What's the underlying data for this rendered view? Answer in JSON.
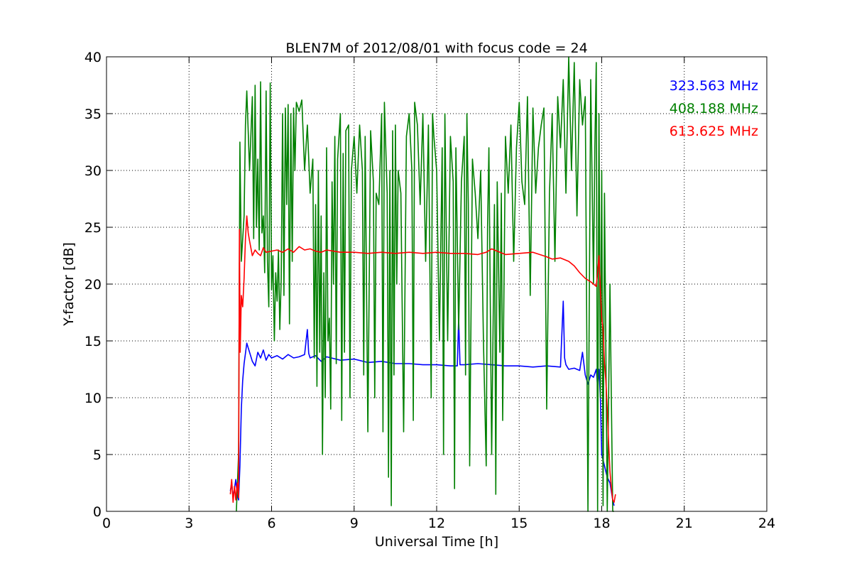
{
  "chart_data": {
    "type": "line",
    "title": "BLEN7M of 2012/08/01 with focus code = 24",
    "xlabel": "Universal Time [h]",
    "ylabel": "Y-factor [dB]",
    "xlim": [
      0,
      24
    ],
    "ylim": [
      0,
      40
    ],
    "xticks": [
      0,
      3,
      6,
      9,
      12,
      15,
      18,
      21,
      24
    ],
    "yticks": [
      0,
      5,
      10,
      15,
      20,
      25,
      30,
      35,
      40
    ],
    "grid": true,
    "legend": "top-right",
    "series": [
      {
        "name": "323.563 MHz",
        "color": "#0000ff",
        "x": [
          4.5,
          4.55,
          4.6,
          4.65,
          4.7,
          4.75,
          4.8,
          4.85,
          4.9,
          4.95,
          5.0,
          5.1,
          5.2,
          5.3,
          5.4,
          5.5,
          5.6,
          5.7,
          5.8,
          5.9,
          6.0,
          6.2,
          6.4,
          6.6,
          6.8,
          7.0,
          7.2,
          7.3,
          7.35,
          7.4,
          7.6,
          7.8,
          8.0,
          8.5,
          9.0,
          9.5,
          10.0,
          10.5,
          11.0,
          11.5,
          12.0,
          12.5,
          12.75,
          12.8,
          12.85,
          13.0,
          13.5,
          14.0,
          14.5,
          15.0,
          15.5,
          16.0,
          16.5,
          16.6,
          16.65,
          16.7,
          16.8,
          17.0,
          17.2,
          17.3,
          17.4,
          17.5,
          17.6,
          17.7,
          17.8,
          17.85,
          17.9,
          17.95,
          18.0,
          18.1,
          18.2,
          18.3,
          18.4,
          18.45
        ],
        "y": [
          1.8,
          2.5,
          1.2,
          2.0,
          2.8,
          1.5,
          1.0,
          4.0,
          9.0,
          11.5,
          13.0,
          14.8,
          14.0,
          13.2,
          12.8,
          14.0,
          13.5,
          14.2,
          13.3,
          13.8,
          13.5,
          13.7,
          13.4,
          13.8,
          13.5,
          13.6,
          13.8,
          16.0,
          13.9,
          13.5,
          13.7,
          13.2,
          13.6,
          13.3,
          13.4,
          13.1,
          13.2,
          13.0,
          13.0,
          12.9,
          12.9,
          12.8,
          12.8,
          17.0,
          12.9,
          12.9,
          13.0,
          12.9,
          12.8,
          12.8,
          12.7,
          12.8,
          12.7,
          18.5,
          13.5,
          12.9,
          12.5,
          12.6,
          12.4,
          14.0,
          12.0,
          11.2,
          12.0,
          11.8,
          12.5,
          11.0,
          12.5,
          10.0,
          5.0,
          4.0,
          3.0,
          2.5,
          1.0,
          0.5
        ]
      },
      {
        "name": "408.188 MHz",
        "color": "#008000",
        "x": [
          4.72,
          4.8,
          4.85,
          4.9,
          5.0,
          5.05,
          5.1,
          5.2,
          5.3,
          5.35,
          5.4,
          5.45,
          5.5,
          5.55,
          5.6,
          5.65,
          5.7,
          5.75,
          5.8,
          5.85,
          5.9,
          5.95,
          6.0,
          6.05,
          6.1,
          6.15,
          6.2,
          6.25,
          6.3,
          6.35,
          6.4,
          6.45,
          6.5,
          6.55,
          6.6,
          6.65,
          6.7,
          6.75,
          6.8,
          6.85,
          6.9,
          7.0,
          7.1,
          7.2,
          7.3,
          7.4,
          7.5,
          7.55,
          7.6,
          7.65,
          7.7,
          7.75,
          7.8,
          7.85,
          7.9,
          7.95,
          8.0,
          8.05,
          8.1,
          8.15,
          8.2,
          8.25,
          8.3,
          8.35,
          8.4,
          8.5,
          8.55,
          8.6,
          8.65,
          8.7,
          8.8,
          8.85,
          8.9,
          9.0,
          9.1,
          9.2,
          9.3,
          9.35,
          9.4,
          9.5,
          9.6,
          9.7,
          9.75,
          9.8,
          9.9,
          10.0,
          10.05,
          10.1,
          10.2,
          10.25,
          10.3,
          10.35,
          10.4,
          10.45,
          10.5,
          10.55,
          10.6,
          10.7,
          10.8,
          10.9,
          11.0,
          11.1,
          11.15,
          11.2,
          11.3,
          11.4,
          11.5,
          11.6,
          11.7,
          11.8,
          11.85,
          11.9,
          12.0,
          12.1,
          12.2,
          12.25,
          12.3,
          12.4,
          12.5,
          12.6,
          12.65,
          12.7,
          12.8,
          12.9,
          13.0,
          13.05,
          13.1,
          13.15,
          13.2,
          13.3,
          13.4,
          13.5,
          13.6,
          13.7,
          13.8,
          13.85,
          13.9,
          14.0,
          14.1,
          14.15,
          14.2,
          14.3,
          14.35,
          14.4,
          14.5,
          14.6,
          14.7,
          14.8,
          14.9,
          15.0,
          15.1,
          15.2,
          15.3,
          15.4,
          15.5,
          15.6,
          15.7,
          15.8,
          15.9,
          16.0,
          16.1,
          16.2,
          16.3,
          16.4,
          16.5,
          16.6,
          16.7,
          16.8,
          16.9,
          17.0,
          17.1,
          17.2,
          17.3,
          17.4,
          17.5,
          17.6,
          17.7,
          17.75,
          17.8,
          17.85,
          17.9,
          17.95,
          18.0,
          18.05,
          18.1,
          18.2,
          18.3,
          18.4,
          18.45
        ],
        "y": [
          0.0,
          5.0,
          32.5,
          22.0,
          26.0,
          34.0,
          37.0,
          30.0,
          36.5,
          24.0,
          37.5,
          25.0,
          31.0,
          23.0,
          37.8,
          24.5,
          26.0,
          21.0,
          37.0,
          22.0,
          18.0,
          37.7,
          19.5,
          22.5,
          15.0,
          21.0,
          18.5,
          23.0,
          16.0,
          20.5,
          35.0,
          19.0,
          35.5,
          27.0,
          35.8,
          16.5,
          35.0,
          22.0,
          35.5,
          30.0,
          36.0,
          35.2,
          36.2,
          30.0,
          34.0,
          28.0,
          31.0,
          13.5,
          27.0,
          11.0,
          30.0,
          14.0,
          26.0,
          5.0,
          21.0,
          10.0,
          32.0,
          15.0,
          17.0,
          9.0,
          29.0,
          20.0,
          33.0,
          13.0,
          31.0,
          35.0,
          8.0,
          31.5,
          14.0,
          33.5,
          34.0,
          10.0,
          30.0,
          33.0,
          28.0,
          34.0,
          30.0,
          12.0,
          33.0,
          7.0,
          33.5,
          29.0,
          10.0,
          28.0,
          27.0,
          35.0,
          7.0,
          36.0,
          28.0,
          3.0,
          30.0,
          0.5,
          33.5,
          12.0,
          34.0,
          20.0,
          30.0,
          28.0,
          7.0,
          33.0,
          35.0,
          30.0,
          8.0,
          36.0,
          34.0,
          27.0,
          35.0,
          22.0,
          34.0,
          10.0,
          35.0,
          33.0,
          30.0,
          15.0,
          32.0,
          5.0,
          35.0,
          15.0,
          33.0,
          29.0,
          2.0,
          32.0,
          16.0,
          29.0,
          33.0,
          12.0,
          35.0,
          27.0,
          4.0,
          31.0,
          28.0,
          24.0,
          30.0,
          15.0,
          4.0,
          25.0,
          32.0,
          5.0,
          27.0,
          1.5,
          29.0,
          14.0,
          28.0,
          8.0,
          33.0,
          28.0,
          34.0,
          22.0,
          32.0,
          36.0,
          29.0,
          27.0,
          36.5,
          19.0,
          35.5,
          28.0,
          32.0,
          34.0,
          35.5,
          9.0,
          28.0,
          35.0,
          22.0,
          36.5,
          32.0,
          38.0,
          28.0,
          40.0,
          30.0,
          39.5,
          26.0,
          38.0,
          34.0,
          36.5,
          0.0,
          38.0,
          20.0,
          32.0,
          39.5,
          0.0,
          35.0,
          10.0,
          30.0,
          0.5,
          28.0,
          0.0,
          20.0,
          0.0,
          0.0
        ]
      },
      {
        "name": "613.625 MHz",
        "color": "#ff0000",
        "x": [
          4.5,
          4.55,
          4.6,
          4.65,
          4.7,
          4.75,
          4.8,
          4.83,
          4.86,
          4.9,
          4.95,
          5.0,
          5.05,
          5.1,
          5.15,
          5.2,
          5.3,
          5.4,
          5.5,
          5.6,
          5.7,
          5.8,
          6.0,
          6.2,
          6.4,
          6.6,
          6.8,
          7.0,
          7.2,
          7.4,
          7.6,
          7.8,
          8.0,
          8.5,
          9.0,
          9.5,
          10.0,
          10.5,
          11.0,
          11.5,
          12.0,
          12.5,
          13.0,
          13.5,
          13.8,
          14.0,
          14.2,
          14.5,
          15.0,
          15.5,
          16.0,
          16.2,
          16.5,
          16.8,
          17.0,
          17.2,
          17.4,
          17.6,
          17.8,
          17.85,
          17.9,
          17.95,
          18.0,
          18.05,
          18.1,
          18.15,
          18.2,
          18.25,
          18.3,
          18.35,
          18.4,
          18.45,
          18.5
        ],
        "y": [
          1.5,
          2.8,
          0.8,
          2.2,
          1.0,
          2.5,
          1.2,
          24.8,
          14.0,
          19.0,
          18.0,
          20.5,
          24.0,
          26.0,
          24.5,
          23.8,
          22.5,
          23.0,
          22.7,
          22.5,
          23.2,
          22.8,
          22.9,
          23.0,
          22.8,
          23.1,
          22.8,
          23.3,
          23.0,
          23.1,
          22.9,
          22.8,
          23.0,
          22.8,
          22.8,
          22.7,
          22.8,
          22.7,
          22.8,
          22.7,
          22.8,
          22.7,
          22.7,
          22.6,
          22.8,
          23.1,
          22.9,
          22.6,
          22.7,
          22.8,
          22.4,
          22.2,
          22.3,
          22.0,
          21.6,
          21.0,
          20.5,
          20.2,
          19.8,
          21.0,
          22.5,
          19.5,
          17.0,
          16.0,
          13.0,
          11.5,
          9.0,
          6.0,
          3.5,
          2.0,
          1.0,
          0.8,
          1.5
        ]
      }
    ]
  }
}
